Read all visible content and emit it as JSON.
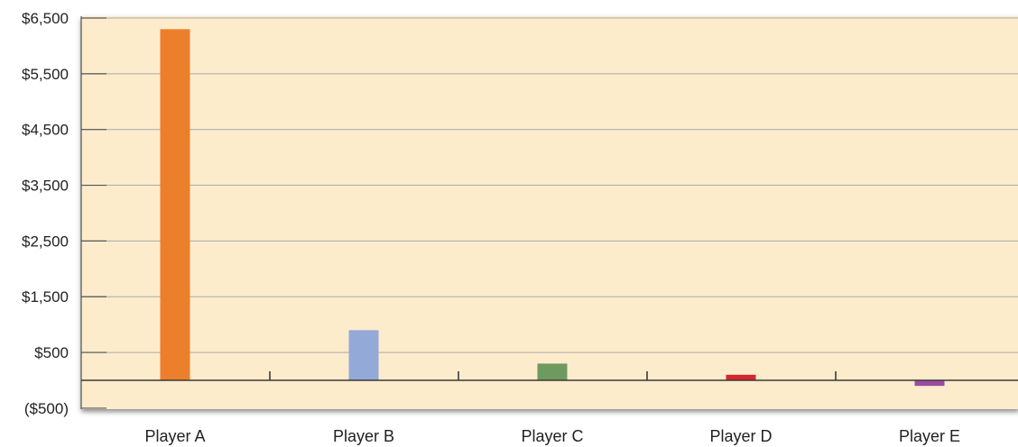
{
  "chart_data": {
    "type": "bar",
    "categories": [
      "Player A",
      "Player B",
      "Player C",
      "Player D",
      "Player E"
    ],
    "values": [
      6300,
      900,
      300,
      100,
      -100
    ],
    "bar_colors": [
      "#ec7f2c",
      "#93a9d8",
      "#6e9a60",
      "#d6262f",
      "#9b4ba3"
    ],
    "y_ticks": [
      {
        "value": 6500,
        "label": "$6,500",
        "color": "#222222"
      },
      {
        "value": 5500,
        "label": "$5,500",
        "color": "#222222"
      },
      {
        "value": 4500,
        "label": "$4,500",
        "color": "#222222"
      },
      {
        "value": 3500,
        "label": "$3,500",
        "color": "#222222"
      },
      {
        "value": 2500,
        "label": "$2,500",
        "color": "#222222"
      },
      {
        "value": 1500,
        "label": "$1,500",
        "color": "#222222"
      },
      {
        "value": 500,
        "label": "$500",
        "color": "#222222"
      },
      {
        "value": -500,
        "label": "($500)",
        "color": "#c0272d"
      }
    ],
    "ylim": [
      -500,
      6500
    ],
    "title": "",
    "xlabel": "",
    "ylabel": "",
    "grid": true,
    "legend": "none",
    "plot_background": "#fdeccc",
    "gridline_color": "#a9a9a9",
    "zero_line_color": "#3a3a3a"
  }
}
